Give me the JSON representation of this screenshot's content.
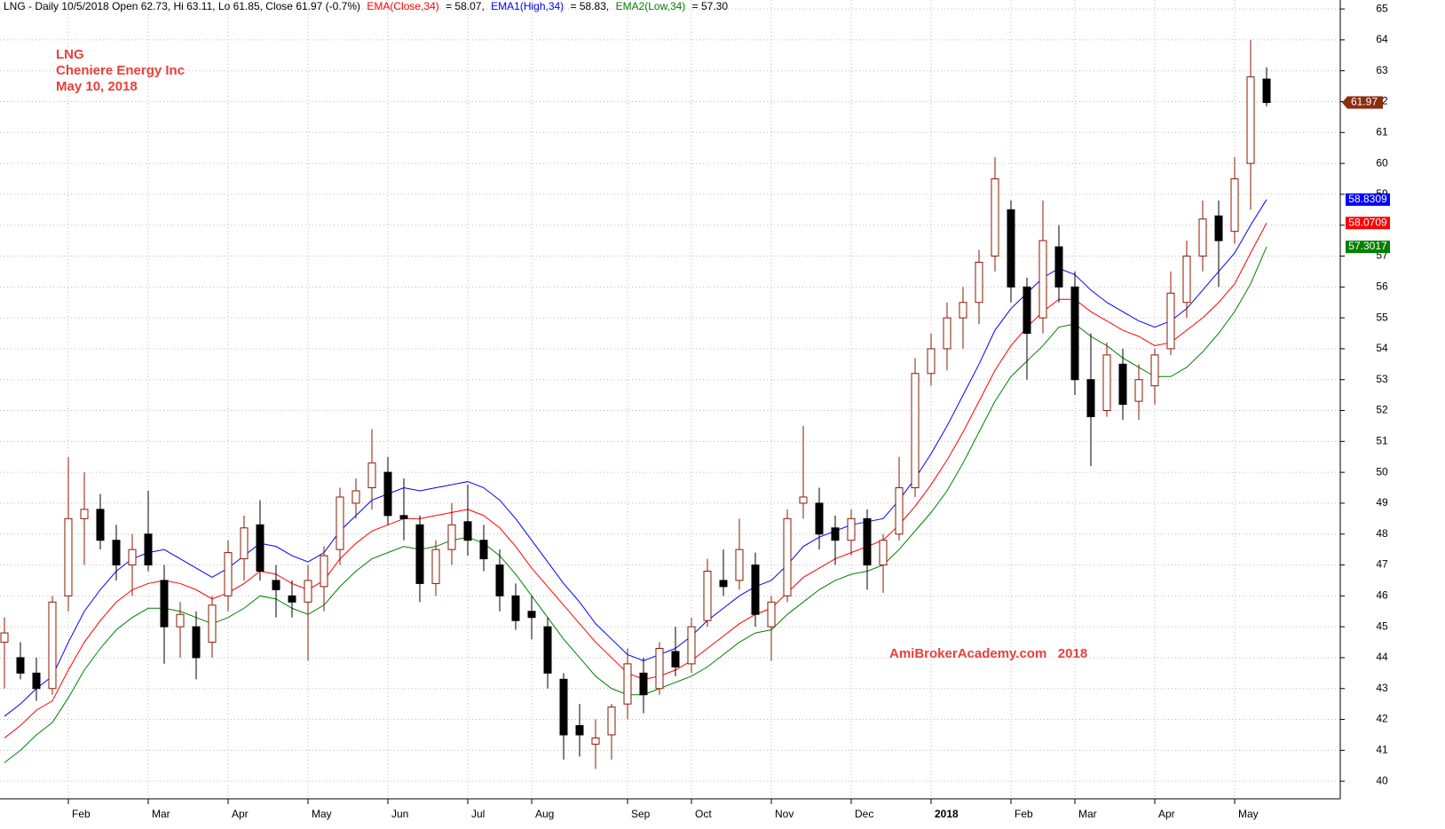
{
  "chart_data": {
    "type": "candlestick",
    "header": "LNG - Daily 10/5/2018 Open 62.73, Hi 63.11, Lo 61.85, Close 61.97 (-0.7%)",
    "annotations": [
      "LNG",
      "Cheniere Energy Inc",
      "May 10, 2018"
    ],
    "watermark": "AmiBrokerAcademy.com   2018",
    "price_label": "61.97",
    "up_color": "#8b1a00",
    "down_color": "#000000",
    "grid": true,
    "ylim": [
      39.43,
      65.29
    ],
    "yticks": [
      40,
      41,
      42,
      43,
      44,
      45,
      46,
      47,
      48,
      49,
      50,
      51,
      52,
      53,
      54,
      55,
      56,
      57,
      58,
      59,
      60,
      61,
      62,
      63,
      64,
      65
    ],
    "categories": [
      null,
      null,
      null,
      null,
      "Feb",
      null,
      null,
      null,
      null,
      "Mar",
      null,
      null,
      null,
      null,
      "Apr",
      null,
      null,
      null,
      null,
      "May",
      null,
      null,
      null,
      null,
      "Jun",
      null,
      null,
      null,
      null,
      "Jul",
      null,
      null,
      null,
      "Aug",
      null,
      null,
      null,
      null,
      null,
      "Sep",
      null,
      null,
      null,
      "Oct",
      null,
      null,
      null,
      null,
      "Nov",
      null,
      null,
      null,
      null,
      "Dec",
      null,
      null,
      null,
      null,
      "2018",
      null,
      null,
      null,
      null,
      "Feb",
      null,
      null,
      null,
      "Mar",
      null,
      null,
      null,
      null,
      "Apr",
      null,
      null,
      null,
      null,
      "May",
      null,
      null
    ],
    "open": [
      44.5,
      44,
      43.5,
      43,
      46,
      48.5,
      48.8,
      47.8,
      47,
      48,
      46.5,
      45,
      45,
      44.5,
      46,
      47.2,
      48.3,
      46.5,
      46,
      45.8,
      46.3,
      47.5,
      49,
      49.5,
      50,
      48.6,
      48.3,
      46.4,
      47.5,
      48.4,
      47.8,
      47,
      46,
      45.5,
      45,
      43.3,
      41.8,
      41.2,
      41.5,
      42.5,
      43.5,
      43,
      44.2,
      43.8,
      45.2,
      46.5,
      46.5,
      47,
      45,
      46,
      49,
      49,
      48.2,
      47.8,
      48.5,
      47,
      48,
      49.5,
      53.2,
      54,
      55,
      55.5,
      57,
      58.5,
      56,
      55,
      57.3,
      56,
      53,
      52,
      53.5,
      52.3,
      52.8,
      54,
      55.5,
      57,
      58.3,
      57.8,
      60,
      62.73
    ],
    "high": [
      45.3,
      44.5,
      44,
      46,
      50.5,
      50,
      49.3,
      48.3,
      48,
      49.4,
      47,
      45.8,
      45.5,
      46,
      47.8,
      48.6,
      49.1,
      47,
      46.5,
      47,
      47.6,
      49.5,
      49.8,
      51.4,
      50.5,
      49.8,
      48.6,
      47.8,
      49,
      49.6,
      48.3,
      47.5,
      46.4,
      46,
      45.3,
      43.5,
      42.5,
      42,
      42.5,
      44.3,
      44,
      44.5,
      45,
      45.3,
      47.2,
      47.5,
      48.5,
      47.4,
      46,
      48.8,
      51.5,
      49.5,
      48.6,
      48.8,
      48.8,
      48,
      50.5,
      53.7,
      54.5,
      55.5,
      56,
      57.2,
      60.2,
      58.8,
      56.3,
      58.8,
      58,
      56.5,
      54.5,
      54.2,
      54,
      53.5,
      54,
      56.5,
      57.5,
      58.8,
      58.8,
      60.2,
      64,
      63.11
    ],
    "low": [
      43,
      43.3,
      42.6,
      42.8,
      45.5,
      47,
      47.5,
      46.5,
      46,
      46.8,
      43.8,
      44,
      43.3,
      44,
      45.5,
      46.5,
      46.5,
      45.3,
      45.3,
      43.9,
      45.5,
      47,
      48.5,
      48.8,
      48.3,
      47.8,
      45.8,
      46,
      47,
      47.3,
      46.8,
      45.5,
      44.9,
      44.6,
      43,
      40.7,
      40.8,
      40.4,
      40.7,
      42,
      42.2,
      42.8,
      43.4,
      43.5,
      45,
      46,
      46.2,
      45,
      43.9,
      45.8,
      48.5,
      47.5,
      47,
      47.3,
      46.2,
      46.1,
      47.8,
      49.2,
      52.8,
      53.3,
      54,
      54.8,
      56.5,
      55.5,
      53,
      54.5,
      55.5,
      52.5,
      50.2,
      51.8,
      51.7,
      51.7,
      52.2,
      53.8,
      55,
      56.5,
      56,
      57.4,
      58.5,
      61.85
    ],
    "close": [
      44.8,
      43.5,
      43,
      45.8,
      48.5,
      48.8,
      47.8,
      47,
      47.5,
      47,
      45,
      45.4,
      44,
      45.7,
      47.4,
      48.2,
      46.8,
      46.2,
      45.8,
      46.5,
      47.3,
      49.2,
      49.4,
      50.3,
      48.6,
      48.5,
      46.4,
      47.5,
      48.3,
      47.8,
      47.2,
      46,
      45.2,
      45.3,
      43.5,
      41.5,
      41.5,
      41.4,
      42.4,
      43.8,
      42.8,
      44.3,
      43.7,
      45,
      46.8,
      46.3,
      47.5,
      45.4,
      45.8,
      48.5,
      49.2,
      48,
      47.8,
      48.5,
      47,
      47.8,
      49.5,
      53.2,
      54,
      55,
      55.5,
      56.8,
      59.5,
      56,
      54.5,
      57.5,
      56,
      53,
      51.8,
      53.8,
      52.2,
      53,
      53.8,
      55.8,
      57,
      58.2,
      57.5,
      59.5,
      62.8,
      61.97
    ],
    "series": [
      {
        "name": "EMA(Close,34)",
        "header_value": "= 58.07,",
        "last_label": "58.0709",
        "color": "#ff0000",
        "values": [
          41.4,
          41.8,
          42.3,
          42.6,
          43.6,
          44.5,
          45.2,
          45.8,
          46.2,
          46.4,
          46.5,
          46.4,
          46.2,
          45.9,
          46.1,
          46.4,
          46.8,
          46.7,
          46.4,
          46.2,
          46.5,
          47.2,
          47.7,
          48.1,
          48.3,
          48.5,
          48.5,
          48.6,
          48.7,
          48.8,
          48.6,
          48.2,
          47.6,
          46.9,
          46.3,
          45.7,
          45.1,
          44.5,
          44.0,
          43.5,
          43.3,
          43.4,
          43.6,
          43.9,
          44.3,
          44.7,
          45.1,
          45.4,
          45.6,
          46.1,
          46.6,
          46.9,
          47.2,
          47.4,
          47.6,
          47.8,
          48.3,
          48.9,
          49.6,
          50.4,
          51.3,
          52.3,
          53.3,
          54.1,
          54.7,
          55.2,
          55.6,
          55.6,
          55.2,
          54.9,
          54.6,
          54.4,
          54.1,
          54.2,
          54.6,
          55.0,
          55.5,
          56.1,
          57.1,
          58.07
        ]
      },
      {
        "name": "EMA1(High,34)",
        "header_value": "= 58.83,",
        "last_label": "58.8309",
        "color": "#0000ff",
        "values": [
          42.1,
          42.5,
          43.0,
          43.4,
          44.5,
          45.5,
          46.2,
          46.8,
          47.2,
          47.4,
          47.5,
          47.2,
          46.9,
          46.6,
          46.9,
          47.3,
          47.7,
          47.6,
          47.3,
          47.1,
          47.4,
          48.1,
          48.6,
          49.1,
          49.3,
          49.5,
          49.4,
          49.5,
          49.6,
          49.7,
          49.5,
          49.1,
          48.5,
          47.8,
          47.1,
          46.4,
          45.8,
          45.1,
          44.6,
          44.1,
          43.9,
          44.1,
          44.3,
          44.7,
          45.2,
          45.6,
          46.0,
          46.3,
          46.5,
          47.0,
          47.6,
          47.9,
          48.1,
          48.3,
          48.4,
          48.5,
          49.1,
          49.8,
          50.6,
          51.5,
          52.5,
          53.5,
          54.6,
          55.3,
          55.8,
          56.3,
          56.6,
          56.4,
          55.9,
          55.5,
          55.2,
          54.9,
          54.7,
          54.9,
          55.3,
          55.9,
          56.5,
          57.1,
          58.0,
          58.83
        ]
      },
      {
        "name": "EMA2(Low,34)",
        "header_value": "= 57.30",
        "last_label": "57.3017",
        "color": "#008000",
        "values": [
          40.6,
          41.0,
          41.5,
          41.9,
          42.7,
          43.6,
          44.3,
          44.9,
          45.3,
          45.6,
          45.6,
          45.5,
          45.3,
          45.1,
          45.3,
          45.6,
          46.0,
          45.9,
          45.6,
          45.4,
          45.7,
          46.3,
          46.8,
          47.2,
          47.4,
          47.6,
          47.5,
          47.6,
          47.8,
          47.9,
          47.7,
          47.3,
          46.7,
          46.0,
          45.3,
          44.6,
          44.0,
          43.4,
          43.0,
          42.8,
          42.8,
          43.0,
          43.2,
          43.4,
          43.7,
          44.1,
          44.5,
          44.8,
          44.9,
          45.4,
          45.8,
          46.2,
          46.5,
          46.7,
          46.8,
          47.0,
          47.5,
          48.1,
          48.7,
          49.4,
          50.3,
          51.3,
          52.3,
          53.1,
          53.6,
          54.1,
          54.7,
          54.8,
          54.4,
          54.1,
          53.7,
          53.4,
          53.1,
          53.1,
          53.4,
          53.9,
          54.5,
          55.2,
          56.1,
          57.3
        ]
      }
    ]
  }
}
